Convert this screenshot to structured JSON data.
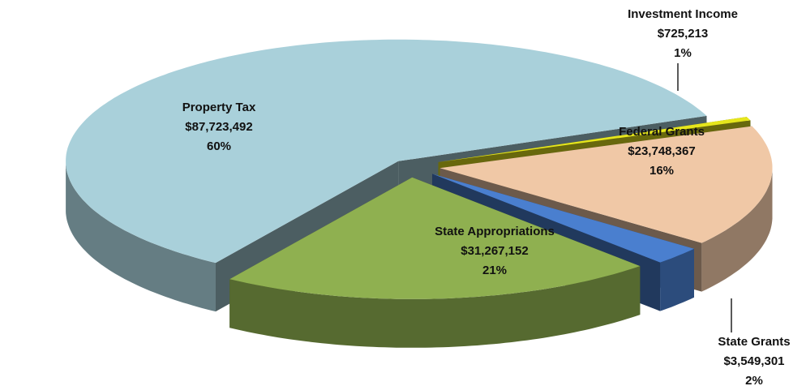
{
  "chart_data": {
    "type": "pie",
    "categories": [
      "Property Tax",
      "Investment Income",
      "Federal Grants",
      "State Grants",
      "State Appropriations"
    ],
    "values": [
      87723492,
      725213,
      23748367,
      3549301,
      31267152
    ],
    "value_labels": [
      "$87,723,492",
      "$725,213",
      "$23,748,367",
      "$3,549,301",
      "$31,267,152"
    ],
    "percent_labels": [
      "60%",
      "1%",
      "16%",
      "2%",
      "21%"
    ],
    "colors": [
      "#a9d0da",
      "#e6e61c",
      "#f0c8a6",
      "#4a7fcf",
      "#8fb050"
    ],
    "exploded": true,
    "three_d": true
  }
}
